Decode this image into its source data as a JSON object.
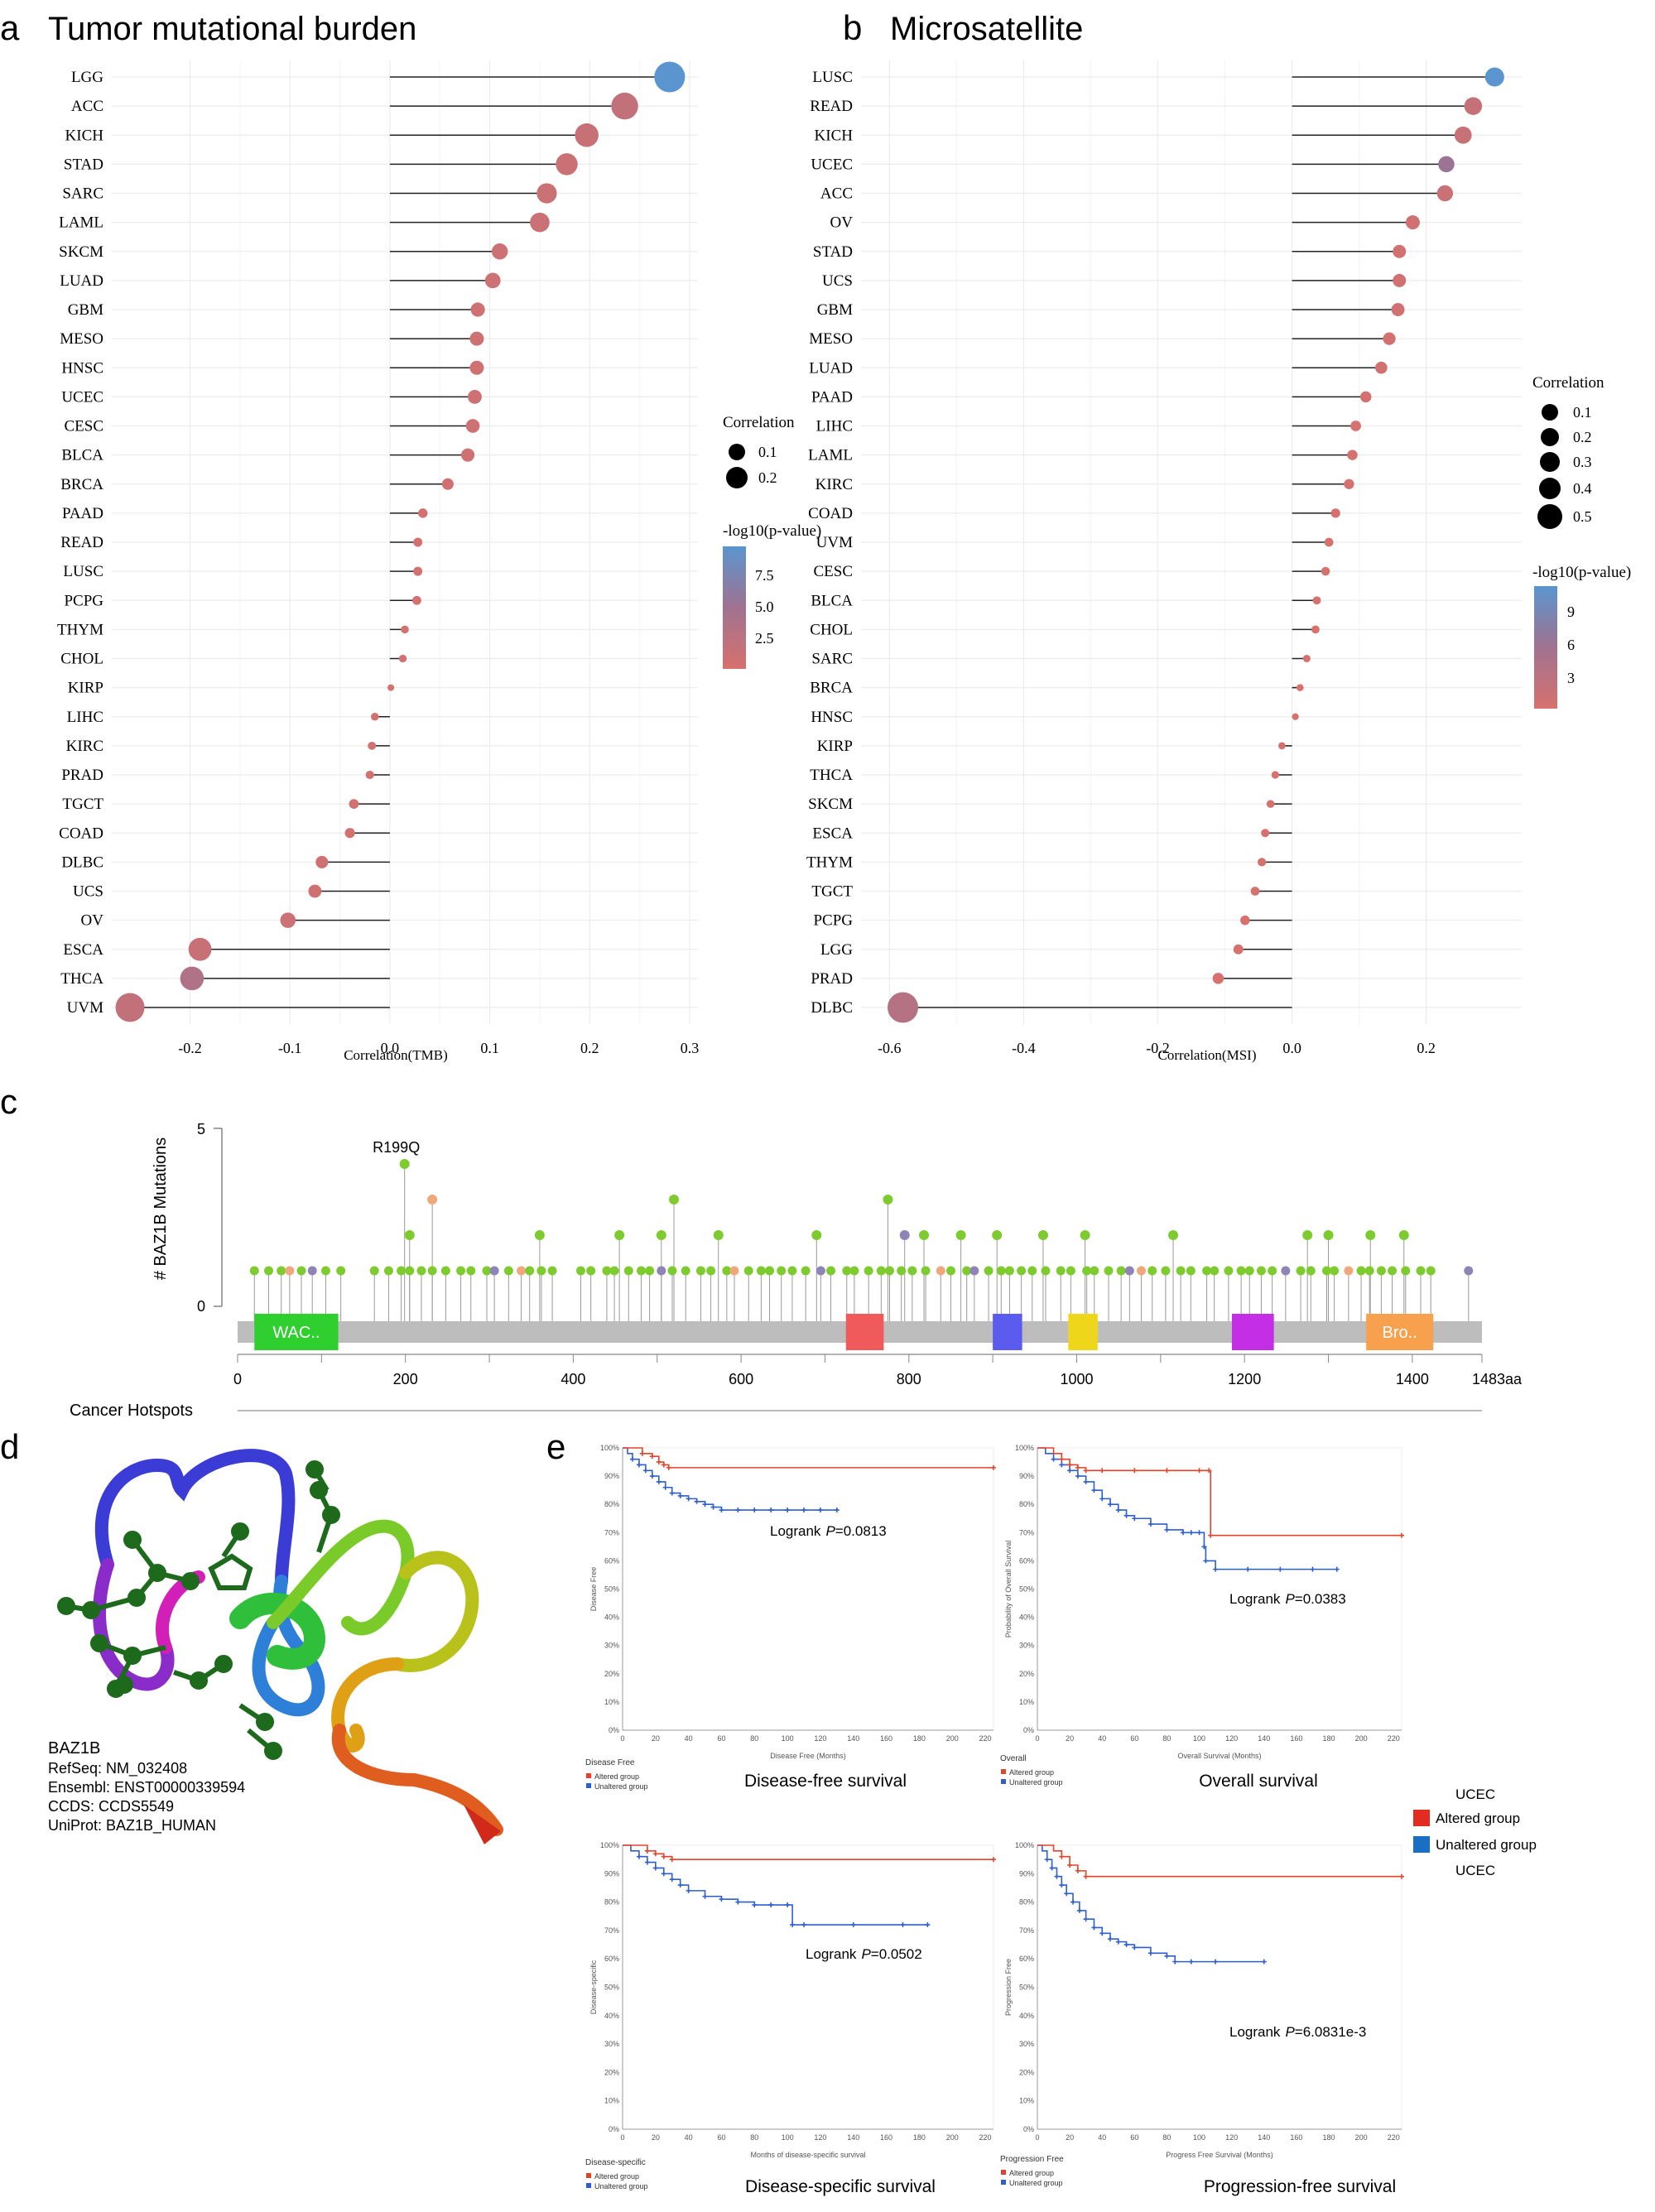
{
  "panel_labels": {
    "a": "a",
    "b": "b",
    "c": "c",
    "d": "d",
    "e": "e"
  },
  "colors": {
    "low": "#d7716d",
    "mid": "#a07290",
    "high": "#5a95cf",
    "green": "#7ecb2f",
    "orange": "#f0a77b",
    "purple": "#8e84b5",
    "grey_bar": "#bdbdbd",
    "km_red": "#e3432a",
    "km_blue": "#2f5fcf"
  },
  "chart_data": [
    {
      "id": "tmb",
      "type": "lollipop",
      "title": "Tumor mutational burden",
      "xlabel": "Correlation(TMB)",
      "xlim": [
        -0.27,
        0.3
      ],
      "xticks": [
        -0.2,
        -0.1,
        0.0,
        0.1,
        0.2,
        0.3
      ],
      "xtick_labels": [
        "-0.2",
        "-0.1",
        "0.0",
        "0.1",
        "0.2",
        "0.3"
      ],
      "categories": [
        "LGG",
        "ACC",
        "KICH",
        "STAD",
        "SARC",
        "LAML",
        "SKCM",
        "LUAD",
        "GBM",
        "MESO",
        "HNSC",
        "UCEC",
        "CESC",
        "BLCA",
        "BRCA",
        "PAAD",
        "READ",
        "LUSC",
        "PCPG",
        "THYM",
        "CHOL",
        "KIRP",
        "LIHC",
        "KIRC",
        "PRAD",
        "TGCT",
        "COAD",
        "DLBC",
        "UCS",
        "OV",
        "ESCA",
        "THCA",
        "UVM"
      ],
      "values": [
        0.28,
        0.235,
        0.197,
        0.177,
        0.157,
        0.15,
        0.11,
        0.103,
        0.088,
        0.087,
        0.087,
        0.085,
        0.083,
        0.078,
        0.058,
        0.033,
        0.028,
        0.028,
        0.027,
        0.015,
        0.013,
        0.001,
        -0.015,
        -0.018,
        -0.02,
        -0.036,
        -0.04,
        -0.068,
        -0.075,
        -0.102,
        -0.19,
        -0.198,
        -0.26
      ],
      "neglog10p": [
        9.2,
        2.6,
        2.2,
        2.0,
        2.0,
        2.0,
        1.8,
        1.8,
        1.7,
        1.7,
        1.7,
        1.7,
        1.7,
        1.7,
        1.6,
        1.4,
        1.4,
        1.4,
        1.4,
        1.3,
        1.3,
        1.2,
        1.3,
        1.3,
        1.3,
        1.4,
        1.4,
        1.6,
        1.6,
        1.8,
        2.2,
        4.0,
        2.6
      ],
      "legend": {
        "size_title": "Correlation",
        "size_labels": [
          "0.1",
          "0.2"
        ],
        "color_title": "-log10(p-value)",
        "color_labels": [
          "7.5",
          "5.0",
          "2.5"
        ]
      }
    },
    {
      "id": "msi",
      "type": "lollipop",
      "title": "Microsatellite",
      "xlabel": "Correlation(MSI)",
      "xlim": [
        -0.63,
        0.33
      ],
      "xticks": [
        -0.6,
        -0.4,
        -0.2,
        0.0,
        0.2
      ],
      "xtick_labels": [
        "-0.6",
        "-0.4",
        "-0.2",
        "0.0",
        "0.2"
      ],
      "categories": [
        "LUSC",
        "READ",
        "KICH",
        "UCEC",
        "ACC",
        "OV",
        "STAD",
        "UCS",
        "GBM",
        "MESO",
        "LUAD",
        "PAAD",
        "LIHC",
        "LAML",
        "KIRC",
        "COAD",
        "UVM",
        "CESC",
        "BLCA",
        "CHOL",
        "SARC",
        "BRCA",
        "HNSC",
        "KIRP",
        "THCA",
        "SKCM",
        "ESCA",
        "THYM",
        "TGCT",
        "PCPG",
        "LGG",
        "PRAD",
        "DLBC"
      ],
      "values": [
        0.302,
        0.27,
        0.255,
        0.23,
        0.228,
        0.18,
        0.16,
        0.16,
        0.158,
        0.145,
        0.133,
        0.11,
        0.095,
        0.09,
        0.085,
        0.065,
        0.055,
        0.05,
        0.037,
        0.035,
        0.022,
        0.012,
        0.005,
        -0.015,
        -0.025,
        -0.032,
        -0.04,
        -0.045,
        -0.055,
        -0.07,
        -0.08,
        -0.11,
        -0.58
      ],
      "neglog10p": [
        10.5,
        2.5,
        2.3,
        6.0,
        2.2,
        1.7,
        1.5,
        1.5,
        1.5,
        1.4,
        1.4,
        1.3,
        1.2,
        1.2,
        1.2,
        1.1,
        1.1,
        1.1,
        1.0,
        1.0,
        1.0,
        1.0,
        1.0,
        1.0,
        1.0,
        1.0,
        1.0,
        1.0,
        1.0,
        1.0,
        1.0,
        1.1,
        4.0
      ],
      "legend": {
        "size_title": "Correlation",
        "size_labels": [
          "0.1",
          "0.2",
          "0.3",
          "0.4",
          "0.5"
        ],
        "color_title": "-log10(p-value)",
        "color_labels": [
          "9",
          "6",
          "3"
        ]
      }
    },
    {
      "id": "mutations",
      "type": "lollipop-mutations",
      "ylabel": "# BAZ1B Mutations",
      "ylim": [
        0,
        5
      ],
      "yticks": [
        "0",
        "5"
      ],
      "x_max": 1483,
      "xtick_labels": [
        "0",
        "200",
        "400",
        "600",
        "800",
        "1000",
        "1200",
        "1400",
        "1483aa"
      ],
      "xticks": [
        0,
        200,
        400,
        600,
        800,
        1000,
        1200,
        1400,
        1483
      ],
      "annotation": "R199Q",
      "annotation_pos": 199,
      "peaks": [
        {
          "pos": 199,
          "count": 4,
          "kind": "missense"
        },
        {
          "pos": 232,
          "count": 3,
          "kind": "truncating"
        },
        {
          "pos": 520,
          "count": 3,
          "kind": "missense"
        },
        {
          "pos": 775,
          "count": 3,
          "kind": "missense"
        },
        {
          "pos": 205,
          "count": 2,
          "kind": "missense"
        },
        {
          "pos": 360,
          "count": 2,
          "kind": "missense"
        },
        {
          "pos": 455,
          "count": 2,
          "kind": "missense"
        },
        {
          "pos": 505,
          "count": 2,
          "kind": "missense"
        },
        {
          "pos": 573,
          "count": 2,
          "kind": "missense"
        },
        {
          "pos": 690,
          "count": 2,
          "kind": "missense"
        },
        {
          "pos": 795,
          "count": 2,
          "kind": "other"
        },
        {
          "pos": 818,
          "count": 2,
          "kind": "missense"
        },
        {
          "pos": 862,
          "count": 2,
          "kind": "missense"
        },
        {
          "pos": 905,
          "count": 2,
          "kind": "missense"
        },
        {
          "pos": 960,
          "count": 2,
          "kind": "missense"
        },
        {
          "pos": 1010,
          "count": 2,
          "kind": "missense"
        },
        {
          "pos": 1115,
          "count": 2,
          "kind": "missense"
        },
        {
          "pos": 1275,
          "count": 2,
          "kind": "missense"
        },
        {
          "pos": 1300,
          "count": 2,
          "kind": "missense"
        },
        {
          "pos": 1350,
          "count": 2,
          "kind": "missense"
        },
        {
          "pos": 1390,
          "count": 2,
          "kind": "missense"
        }
      ],
      "domains": [
        {
          "label": "WAC..",
          "start": 20,
          "end": 120,
          "color": "#2fcf2f"
        },
        {
          "label": "",
          "start": 725,
          "end": 770,
          "color": "#f05a5a"
        },
        {
          "label": "",
          "start": 900,
          "end": 935,
          "color": "#5b5bf0"
        },
        {
          "label": "",
          "start": 990,
          "end": 1025,
          "color": "#eed71b"
        },
        {
          "label": "",
          "start": 1185,
          "end": 1235,
          "color": "#c42fe6"
        },
        {
          "label": "Bro..",
          "start": 1345,
          "end": 1425,
          "color": "#f7a14f"
        }
      ],
      "track_label": "Cancer Hotspots"
    },
    {
      "id": "km",
      "type": "km",
      "legend": {
        "title_top": "UCEC",
        "altered": "Altered group",
        "unaltered": "Unaltered group",
        "title_bottom": "UCEC"
      },
      "x_ticks": [
        "0",
        "20",
        "40",
        "60",
        "80",
        "100",
        "120",
        "140",
        "160",
        "180",
        "200",
        "220"
      ],
      "y_ticks": [
        "0%",
        "10%",
        "20%",
        "30%",
        "40%",
        "50%",
        "60%",
        "70%",
        "80%",
        "90%",
        "100%"
      ],
      "panels": [
        {
          "name": "Disease-free survival",
          "ylabel": "Disease Free",
          "xlabel": "Disease Free (Months)",
          "legend_title": "Disease Free",
          "logrank_text": "Logrank",
          "p_label": "P",
          "p_value": "=0.0813",
          "altered": {
            "x": [
              0,
              10,
              12,
              18,
              22,
              25,
              28,
              225
            ],
            "y": [
              100,
              100,
              98,
              97,
              95,
              94,
              93,
              93
            ]
          },
          "unaltered": {
            "x": [
              0,
              3,
              6,
              10,
              14,
              18,
              22,
              26,
              30,
              35,
              40,
              45,
              50,
              55,
              60,
              70,
              80,
              90,
              100,
              110,
              120,
              130
            ],
            "y": [
              100,
              98,
              96,
              94,
              92,
              90,
              88,
              86,
              84,
              83,
              82,
              81,
              80,
              79,
              78,
              78,
              78,
              78,
              78,
              78,
              78,
              78
            ]
          }
        },
        {
          "name": "Overall survival",
          "ylabel": "Probability of Overall Survival",
          "xlabel": "Overall Survival (Months)",
          "legend_title": "Overall",
          "logrank_text": "Logrank",
          "p_label": "P",
          "p_value": "=0.0383",
          "altered": {
            "x": [
              0,
              10,
              15,
              20,
              25,
              30,
              40,
              60,
              80,
              100,
              106,
              107,
              225
            ],
            "y": [
              100,
              98,
              96,
              94,
              93,
              92,
              92,
              92,
              92,
              92,
              92,
              69,
              69
            ]
          },
          "unaltered": {
            "x": [
              0,
              5,
              10,
              15,
              20,
              25,
              30,
              35,
              40,
              45,
              50,
              55,
              60,
              70,
              80,
              90,
              95,
              100,
              103,
              104,
              110,
              130,
              150,
              170,
              185
            ],
            "y": [
              100,
              98,
              96,
              94,
              92,
              90,
              88,
              85,
              82,
              80,
              78,
              76,
              75,
              73,
              71,
              70,
              70,
              70,
              65,
              60,
              57,
              57,
              57,
              57,
              57
            ]
          }
        },
        {
          "name": "Disease-specific survival",
          "ylabel": "Disease-specific",
          "xlabel": "Months of disease-specific survival",
          "legend_title": "Disease-specific",
          "logrank_text": "Logrank",
          "p_label": "P",
          "p_value": "=0.0502",
          "altered": {
            "x": [
              0,
              10,
              15,
              20,
              25,
              30,
              225
            ],
            "y": [
              100,
              100,
              98,
              97,
              96,
              95,
              95
            ]
          },
          "unaltered": {
            "x": [
              0,
              5,
              10,
              15,
              20,
              25,
              30,
              35,
              40,
              50,
              60,
              70,
              80,
              90,
              100,
              103,
              110,
              140,
              170,
              185
            ],
            "y": [
              100,
              98,
              96,
              94,
              92,
              90,
              88,
              86,
              84,
              82,
              81,
              80,
              79,
              79,
              79,
              72,
              72,
              72,
              72,
              72
            ]
          }
        },
        {
          "name": "Progression-free survival",
          "ylabel": "Progression Free",
          "xlabel": "Progress Free Survival (Months)",
          "legend_title": "Progression Free",
          "logrank_text": "Logrank",
          "p_label": "P",
          "p_value": "=6.0831e-3",
          "altered": {
            "x": [
              0,
              10,
              15,
              20,
              25,
              30,
              225
            ],
            "y": [
              100,
              98,
              96,
              93,
              91,
              89,
              89
            ]
          },
          "unaltered": {
            "x": [
              0,
              3,
              6,
              9,
              12,
              15,
              18,
              22,
              26,
              30,
              35,
              40,
              45,
              50,
              55,
              60,
              70,
              80,
              85,
              95,
              110,
              140
            ],
            "y": [
              100,
              98,
              95,
              92,
              89,
              86,
              83,
              80,
              77,
              74,
              71,
              69,
              67,
              66,
              65,
              64,
              62,
              61,
              59,
              59,
              59,
              59
            ]
          }
        }
      ]
    }
  ],
  "structure": {
    "gene": "BAZ1B",
    "refseq": "RefSeq: NM_032408",
    "ensembl": "Ensembl: ENST00000339594",
    "ccds": "CCDS: CCDS5549",
    "uniprot": "UniProt: BAZ1B_HUMAN"
  }
}
